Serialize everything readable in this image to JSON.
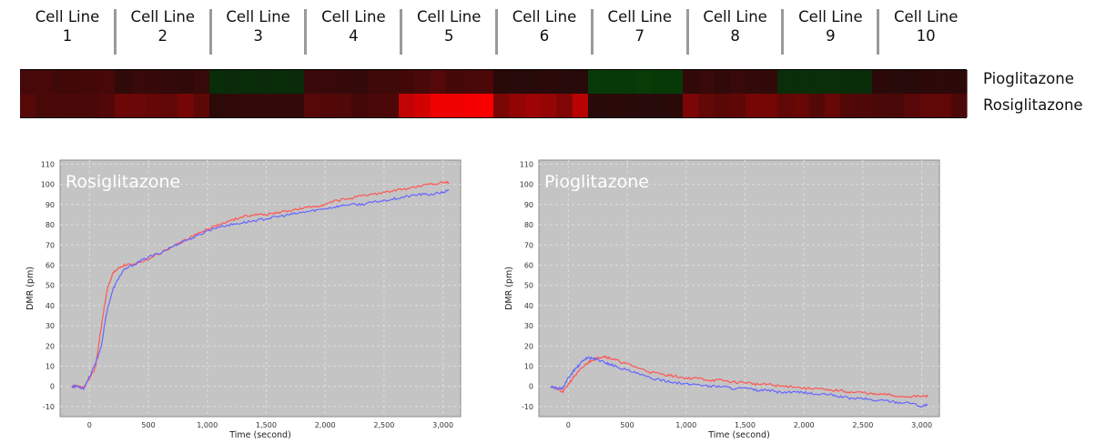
{
  "header": {
    "cell_lines": [
      {
        "line1": "Cell Line",
        "line2": "1"
      },
      {
        "line1": "Cell Line",
        "line2": "2"
      },
      {
        "line1": "Cell Line",
        "line2": "3"
      },
      {
        "line1": "Cell Line",
        "line2": "4"
      },
      {
        "line1": "Cell Line",
        "line2": "5"
      },
      {
        "line1": "Cell Line",
        "line2": "6"
      },
      {
        "line1": "Cell Line",
        "line2": "7"
      },
      {
        "line1": "Cell Line",
        "line2": "8"
      },
      {
        "line1": "Cell Line",
        "line2": "9"
      },
      {
        "line1": "Cell Line",
        "line2": "10"
      }
    ]
  },
  "chart_data": [
    {
      "type": "heatmap",
      "rows": [
        "Pioglitazone",
        "Rosiglitazone"
      ],
      "columns": [
        "Cell Line 1",
        "Cell Line 2",
        "Cell Line 3",
        "Cell Line 4",
        "Cell Line 5",
        "Cell Line 6",
        "Cell Line 7",
        "Cell Line 8",
        "Cell Line 9",
        "Cell Line 10"
      ],
      "scale": "red = positive response, green = negative response, black = no response",
      "values": [
        [
          0.18,
          0.1,
          -0.06,
          0.12,
          0.2,
          0.05,
          -0.3,
          0.1,
          -0.1,
          0.06
        ],
        [
          0.2,
          0.35,
          0.08,
          0.22,
          0.85,
          0.55,
          0.05,
          0.35,
          0.28,
          0.25
        ]
      ]
    },
    {
      "type": "line",
      "title": "Rosiglitazone",
      "xlabel": "Time (second)",
      "ylabel": "DMR (pm)",
      "xlim": [
        -250,
        3150
      ],
      "ylim": [
        -15,
        112
      ],
      "xticks": [
        0,
        500,
        1000,
        1500,
        2000,
        2500,
        3000
      ],
      "xtick_labels": [
        "0",
        "500",
        "1,000",
        "1,500",
        "2,000",
        "2,500",
        "3,000"
      ],
      "yticks": [
        -10,
        0,
        10,
        20,
        30,
        40,
        50,
        60,
        70,
        80,
        90,
        100,
        110
      ],
      "grid": true,
      "series": [
        {
          "color": "#ff5555",
          "x": [
            -150,
            -100,
            -50,
            0,
            50,
            100,
            150,
            200,
            250,
            300,
            400,
            500,
            600,
            700,
            800,
            900,
            1000,
            1100,
            1200,
            1300,
            1400,
            1500,
            1600,
            1700,
            1800,
            1900,
            2000,
            2100,
            2200,
            2300,
            2400,
            2500,
            2600,
            2700,
            2800,
            2900,
            3000,
            3050
          ],
          "y": [
            0,
            0,
            -1,
            4,
            9,
            30,
            48,
            56,
            59,
            60,
            61,
            63,
            66,
            69,
            72,
            75,
            78,
            80,
            82,
            84,
            85,
            85,
            86,
            87,
            88,
            89,
            90,
            92,
            93,
            94,
            95,
            96,
            97,
            98,
            99,
            100,
            101,
            101
          ]
        },
        {
          "color": "#6666ff",
          "x": [
            -150,
            -100,
            -50,
            0,
            50,
            100,
            150,
            200,
            250,
            300,
            400,
            500,
            600,
            700,
            800,
            900,
            1000,
            1100,
            1200,
            1300,
            1400,
            1500,
            1600,
            1700,
            1800,
            1900,
            2000,
            2100,
            2200,
            2300,
            2400,
            2500,
            2600,
            2700,
            2800,
            2900,
            3000,
            3050
          ],
          "y": [
            0,
            0,
            -1,
            5,
            11,
            20,
            38,
            48,
            54,
            58,
            61,
            64,
            66,
            69,
            72,
            74,
            77,
            79,
            80,
            81,
            82,
            83,
            84,
            85,
            86,
            87,
            88,
            89,
            90,
            90,
            91,
            92,
            93,
            94,
            95,
            95,
            96,
            97
          ]
        }
      ]
    },
    {
      "type": "line",
      "title": "Pioglitazone",
      "xlabel": "Time (second)",
      "ylabel": "DMR (pm)",
      "xlim": [
        -250,
        3150
      ],
      "ylim": [
        -15,
        112
      ],
      "xticks": [
        0,
        500,
        1000,
        1500,
        2000,
        2500,
        3000
      ],
      "xtick_labels": [
        "0",
        "500",
        "1,000",
        "1,500",
        "2,000",
        "2,500",
        "3,000"
      ],
      "yticks": [
        -10,
        0,
        10,
        20,
        30,
        40,
        50,
        60,
        70,
        80,
        90,
        100,
        110
      ],
      "grid": true,
      "series": [
        {
          "color": "#ff5555",
          "x": [
            -150,
            -100,
            -50,
            0,
            50,
            100,
            150,
            200,
            250,
            300,
            350,
            400,
            500,
            600,
            700,
            800,
            900,
            1000,
            1100,
            1200,
            1300,
            1400,
            1500,
            1600,
            1700,
            1800,
            1900,
            2000,
            2100,
            2200,
            2300,
            2400,
            2500,
            2600,
            2700,
            2800,
            2900,
            3000,
            3050
          ],
          "y": [
            0,
            -1,
            -3,
            1,
            5,
            8,
            11,
            13,
            14,
            15,
            14,
            13,
            11,
            9,
            7,
            6,
            5,
            4,
            4,
            3,
            3,
            2,
            2,
            1,
            1,
            0,
            0,
            -1,
            -1,
            -2,
            -2,
            -3,
            -3,
            -4,
            -4,
            -5,
            -5,
            -5,
            -5
          ]
        },
        {
          "color": "#6666ff",
          "x": [
            -150,
            -100,
            -50,
            0,
            50,
            100,
            150,
            200,
            250,
            300,
            350,
            400,
            500,
            600,
            700,
            800,
            900,
            1000,
            1100,
            1200,
            1300,
            1400,
            1500,
            1600,
            1700,
            1800,
            1900,
            2000,
            2100,
            2200,
            2300,
            2400,
            2500,
            2600,
            2700,
            2800,
            2900,
            3000,
            3050
          ],
          "y": [
            0,
            -1,
            -1,
            4,
            8,
            11,
            14,
            14,
            13,
            12,
            11,
            10,
            8,
            6,
            4,
            3,
            2,
            1,
            1,
            0,
            0,
            -1,
            -1,
            -2,
            -2,
            -3,
            -3,
            -3,
            -4,
            -4,
            -5,
            -6,
            -6,
            -7,
            -7,
            -8,
            -8,
            -10,
            -9
          ]
        }
      ]
    }
  ]
}
